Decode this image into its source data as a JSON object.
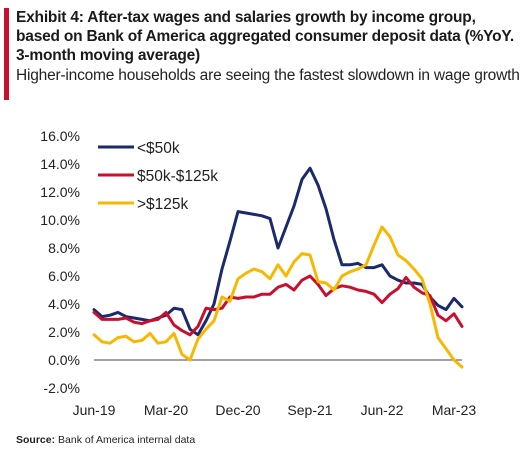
{
  "header": {
    "title": "Exhibit 4: After-tax wages and salaries growth by income group, based on Bank  of America aggregated consumer deposit data (%YoY. 3-month moving average)",
    "subtitle": "Higher-income households are seeing the fastest slowdown in wage growth",
    "accent_color": "#c8102e"
  },
  "footer": {
    "source_label": "Source:",
    "source_text": "Bank of America internal data"
  },
  "chart_data": {
    "type": "line",
    "title": "",
    "xlabel": "",
    "ylabel": "",
    "ylim": [
      -2,
      16
    ],
    "yticks": [
      "16.0%",
      "14.0%",
      "12.0%",
      "10.0%",
      "8.0%",
      "6.0%",
      "4.0%",
      "2.0%",
      "0.0%",
      "-2.0%"
    ],
    "ytick_values": [
      16,
      14,
      12,
      10,
      8,
      6,
      4,
      2,
      0,
      -2
    ],
    "xticks": [
      "Jun-19",
      "Mar-20",
      "Dec-20",
      "Sep-21",
      "Jun-22",
      "Mar-23"
    ],
    "xtick_index": [
      0,
      9,
      18,
      27,
      36,
      45
    ],
    "x": [
      "Jun-19",
      "Jul-19",
      "Aug-19",
      "Sep-19",
      "Oct-19",
      "Nov-19",
      "Dec-19",
      "Jan-20",
      "Feb-20",
      "Mar-20",
      "Apr-20",
      "May-20",
      "Jun-20",
      "Jul-20",
      "Aug-20",
      "Sep-20",
      "Oct-20",
      "Nov-20",
      "Dec-20",
      "Jan-21",
      "Feb-21",
      "Mar-21",
      "Apr-21",
      "May-21",
      "Jun-21",
      "Jul-21",
      "Aug-21",
      "Sep-21",
      "Oct-21",
      "Nov-21",
      "Dec-21",
      "Jan-22",
      "Feb-22",
      "Mar-22",
      "Apr-22",
      "May-22",
      "Jun-22",
      "Jul-22",
      "Aug-22",
      "Sep-22",
      "Oct-22",
      "Nov-22",
      "Dec-22",
      "Jan-23",
      "Feb-23",
      "Mar-23",
      "Apr-23"
    ],
    "legend_position": "top-left",
    "series": [
      {
        "name": "<$50k",
        "color": "#1a2a6c",
        "values": [
          3.6,
          3.1,
          3.2,
          3.4,
          3.1,
          3.0,
          2.9,
          2.8,
          3.0,
          3.2,
          3.7,
          3.6,
          2.2,
          1.8,
          2.8,
          4.0,
          6.5,
          8.5,
          10.6,
          10.5,
          10.4,
          10.3,
          10.1,
          8.0,
          9.5,
          11.0,
          12.9,
          13.7,
          12.5,
          10.8,
          8.6,
          6.8,
          6.8,
          6.9,
          6.6,
          6.6,
          6.8,
          6.0,
          5.7,
          5.5,
          5.5,
          5.4,
          4.5,
          3.9,
          3.6,
          4.4,
          3.8
        ]
      },
      {
        "name": "$50k-$125k",
        "color": "#c8102e",
        "values": [
          3.4,
          2.9,
          2.9,
          2.9,
          3.0,
          2.7,
          2.6,
          2.8,
          2.9,
          3.4,
          2.5,
          2.1,
          1.8,
          2.4,
          3.7,
          3.6,
          3.7,
          4.5,
          4.4,
          4.5,
          4.5,
          4.7,
          4.7,
          5.2,
          5.4,
          5.0,
          5.7,
          6.0,
          5.4,
          4.6,
          5.1,
          5.3,
          5.2,
          5.0,
          4.9,
          4.7,
          4.1,
          4.7,
          5.1,
          5.9,
          5.2,
          4.8,
          4.6,
          3.2,
          2.8,
          3.3,
          2.4
        ]
      },
      {
        "name": ">$125k",
        "color": "#f6b800",
        "values": [
          1.8,
          1.3,
          1.2,
          1.6,
          1.7,
          1.3,
          1.4,
          1.9,
          1.2,
          1.3,
          1.9,
          0.4,
          0.0,
          1.5,
          2.2,
          2.8,
          4.5,
          4.2,
          5.8,
          6.2,
          6.5,
          6.3,
          5.8,
          6.8,
          6.0,
          7.0,
          7.6,
          7.5,
          5.6,
          5.5,
          5.0,
          6.0,
          6.3,
          6.5,
          6.8,
          8.2,
          9.5,
          8.8,
          7.5,
          7.1,
          6.5,
          5.8,
          4.0,
          1.6,
          0.8,
          0.0,
          -0.5
        ]
      }
    ]
  }
}
